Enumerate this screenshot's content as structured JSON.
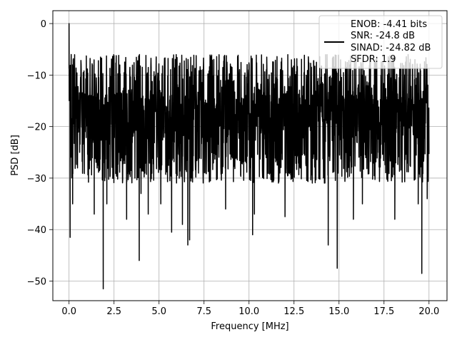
{
  "chart_data": {
    "type": "line",
    "title": "",
    "xlabel": "Frequency [MHz]",
    "ylabel": "PSD [dB]",
    "xlim": [
      -0.9,
      21.0
    ],
    "ylim": [
      -53.8,
      2.5
    ],
    "xticks": [
      0.0,
      2.5,
      5.0,
      7.5,
      10.0,
      12.5,
      15.0,
      17.5,
      20.0
    ],
    "xtick_labels": [
      "0.0",
      "2.5",
      "5.0",
      "7.5",
      "10.0",
      "12.5",
      "15.0",
      "17.5",
      "20.0"
    ],
    "yticks": [
      0,
      -10,
      -20,
      -30,
      -40,
      -50
    ],
    "ytick_labels": [
      "0",
      "−10",
      "−20",
      "−30",
      "−40",
      "−50"
    ],
    "grid": true,
    "legend": {
      "placement": "top-right",
      "lines": [
        "ENOB: -4.41 bits",
        "SNR: -24.8 dB",
        "SINAD: -24.82 dB",
        "SFDR: 1.9"
      ]
    },
    "series": [
      {
        "color": "#000000",
        "x_range": [
          0.0,
          20.0
        ],
        "num_points": 2000,
        "noise_floor_db": -18.5,
        "noise_band_db": [
          -28.0,
          -6.0
        ],
        "x": [
          0.0,
          0.06,
          0.12,
          0.2,
          1.4,
          1.9,
          2.1,
          3.2,
          3.9,
          4.0,
          4.4,
          5.1,
          5.7,
          6.3,
          6.6,
          6.7,
          8.7,
          10.2,
          10.3,
          12.0,
          14.4,
          14.9,
          15.8,
          16.3,
          18.1,
          19.4,
          19.6,
          19.9
        ],
        "y": [
          0.0,
          -41.5,
          -6.0,
          -35.0,
          -37.0,
          -51.5,
          -35.0,
          -38.0,
          -46.0,
          -33.0,
          -37.0,
          -35.0,
          -40.5,
          -39.0,
          -43.0,
          -42.0,
          -36.0,
          -41.0,
          -37.0,
          -37.5,
          -43.0,
          -47.5,
          -38.0,
          -35.0,
          -38.0,
          -35.0,
          -48.5,
          -34.0
        ]
      }
    ]
  }
}
